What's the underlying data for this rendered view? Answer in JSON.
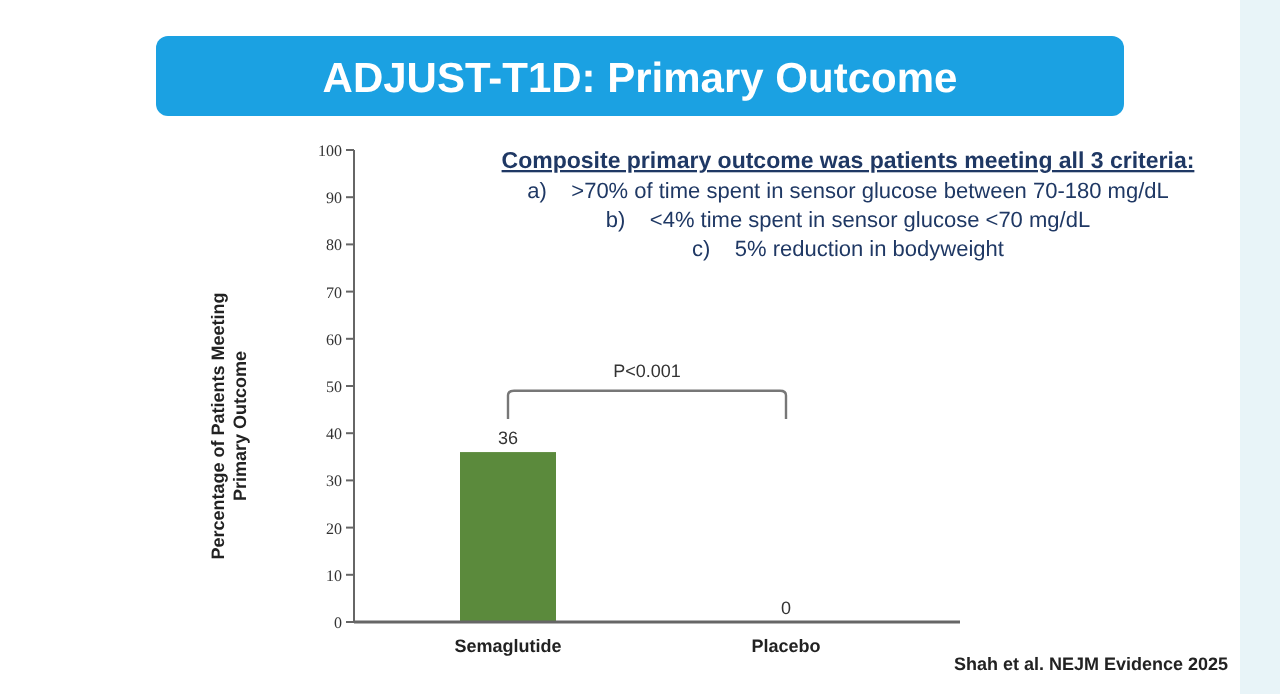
{
  "chart_data": {
    "type": "bar",
    "title": "ADJUST-T1D: Primary Outcome",
    "ylabel": "Percentage of Patients Meeting\nPrimary Outcome",
    "categories": [
      "Semaglutide",
      "Placebo"
    ],
    "values": [
      36,
      0
    ],
    "color": "#5b8a3c",
    "ylim": [
      0,
      100
    ],
    "yticks": [
      0,
      10,
      20,
      30,
      40,
      50,
      60,
      70,
      80,
      90,
      100
    ],
    "grid": false,
    "data_labels": true,
    "annotations": [
      "Composite primary outcome was patients meeting all 3 criteria:",
      "a)    >70% of time spent in sensor glucose between 70-180 mg/dL",
      "b)    <4% time spent in sensor glucose <70 mg/dL",
      "c)    5% reduction in bodyweight",
      "P<0.001",
      "Shah et al. NEJM Evidence 2025"
    ]
  }
}
